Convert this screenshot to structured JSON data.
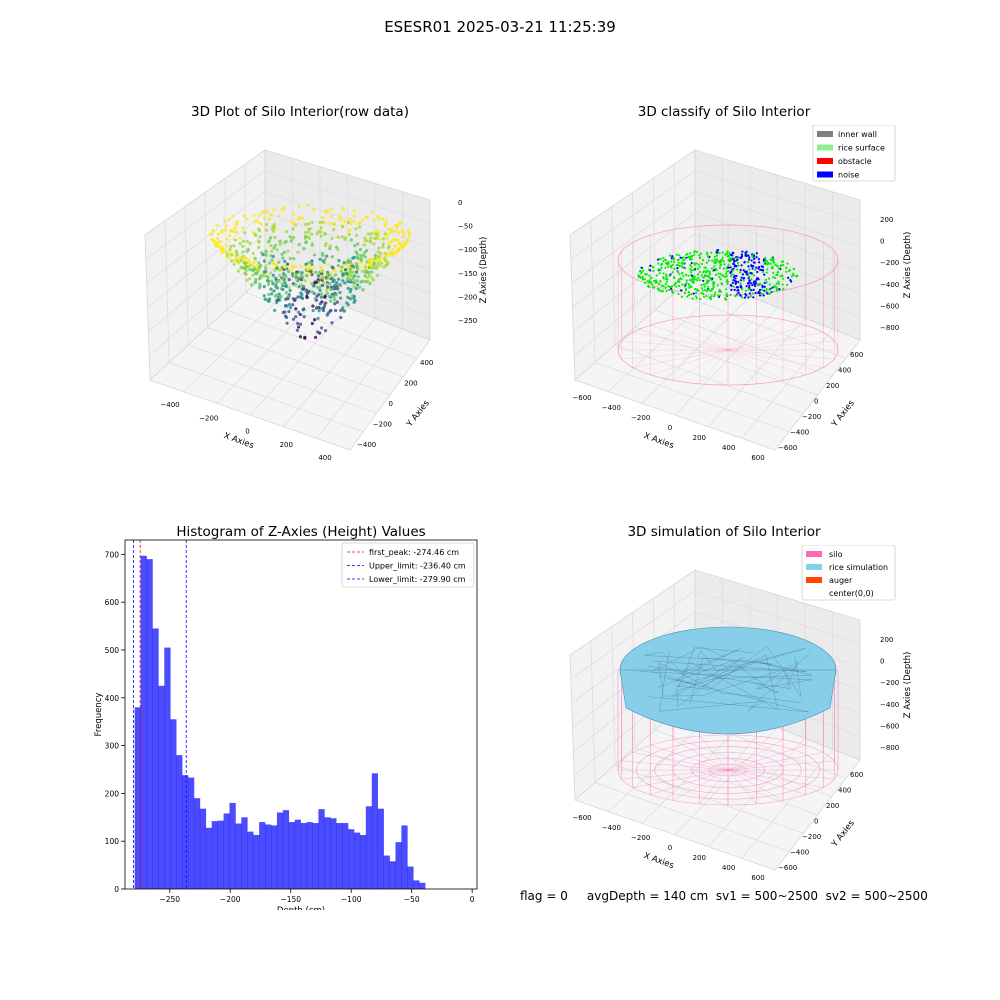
{
  "suptitle": "ESESR01 2025-03-21 11:25:39",
  "footer": "flag = 0     avgDepth = 140 cm  sv1 = 500~2500  sv2 = 500~2500",
  "chart_data": [
    {
      "type": "scatter",
      "subtype": "3d",
      "title": "3D Plot of Silo Interior(row data)",
      "xlabel": "X Axies",
      "ylabel": "Y Axies",
      "zlabel": "Z Axies (Depth)",
      "xticks": [
        "-400",
        "-200",
        "0",
        "200",
        "400"
      ],
      "yticks": [
        "-400",
        "-200",
        "0",
        "200",
        "400"
      ],
      "zticks": [
        "0",
        "-50",
        "-100",
        "-150",
        "-200",
        "-250"
      ],
      "colormap": "viridis"
    },
    {
      "type": "scatter",
      "subtype": "3d",
      "title": "3D classify of Silo Interior",
      "xlabel": "X Axies",
      "ylabel": "Y Axies",
      "zlabel": "Z Axies (Depth)",
      "xticks": [
        "-600",
        "-400",
        "-200",
        "0",
        "200",
        "400",
        "600"
      ],
      "yticks": [
        "-600",
        "-400",
        "-200",
        "0",
        "200",
        "400",
        "600"
      ],
      "zticks": [
        "200",
        "0",
        "-200",
        "-400",
        "-600",
        "-800"
      ],
      "legend": [
        {
          "label": "inner wall",
          "color": "#808080"
        },
        {
          "label": "rice surface",
          "color": "#90ee90"
        },
        {
          "label": "obstacle",
          "color": "#ff0000"
        },
        {
          "label": "noise",
          "color": "#0000ff"
        }
      ],
      "legend_position": "top-right"
    },
    {
      "type": "bar",
      "subtype": "histogram",
      "title": "Histogram of Z-Axies (Height) Values",
      "xlabel": "Depth (cm)",
      "ylabel": "Frequency",
      "xlim": [
        -287,
        4
      ],
      "ylim": [
        0,
        730
      ],
      "xticks": [
        -250,
        -200,
        -150,
        -100,
        -50,
        0
      ],
      "yticks": [
        0,
        100,
        200,
        300,
        400,
        500,
        600,
        700
      ],
      "bin_start": -279,
      "bin_width": 4.9,
      "values": [
        380,
        697,
        690,
        545,
        425,
        505,
        355,
        280,
        238,
        233,
        190,
        168,
        128,
        142,
        143,
        158,
        180,
        137,
        150,
        120,
        113,
        140,
        135,
        133,
        160,
        165,
        140,
        145,
        138,
        140,
        138,
        167,
        150,
        148,
        138,
        138,
        125,
        118,
        113,
        173,
        242,
        168,
        70,
        58,
        98,
        133,
        47,
        18,
        13
      ],
      "bar_color": "#0000ff",
      "bar_alpha": 0.7,
      "vlines": [
        {
          "x": -274.46,
          "color": "#ff0000",
          "label": "first_peak: -274.46 cm"
        },
        {
          "x": -236.4,
          "color": "#0000ff",
          "label": "Upper_limit: -236.40 cm"
        },
        {
          "x": -279.9,
          "color": "#0000ff",
          "label": "Lower_limit: -279.90 cm"
        }
      ],
      "legend_position": "top-right"
    },
    {
      "type": "area",
      "subtype": "3d surface",
      "title": "3D simulation of Silo Interior",
      "xlabel": "X Axies",
      "ylabel": "Y Axies",
      "zlabel": "Z Axies (Depth)",
      "xticks": [
        "-600",
        "-400",
        "-200",
        "0",
        "200",
        "400",
        "600"
      ],
      "yticks": [
        "-600",
        "-400",
        "-200",
        "0",
        "200",
        "400",
        "600"
      ],
      "zticks": [
        "200",
        "0",
        "-200",
        "-400",
        "-600",
        "-800"
      ],
      "legend": [
        {
          "label": "silo",
          "color": "#ff69b4"
        },
        {
          "label": "rice simulation",
          "color": "#87ceeb"
        },
        {
          "label": "auger",
          "color": "#ff4500"
        },
        {
          "label": "center(0,0)",
          "color": null
        }
      ],
      "legend_position": "top-right"
    }
  ]
}
